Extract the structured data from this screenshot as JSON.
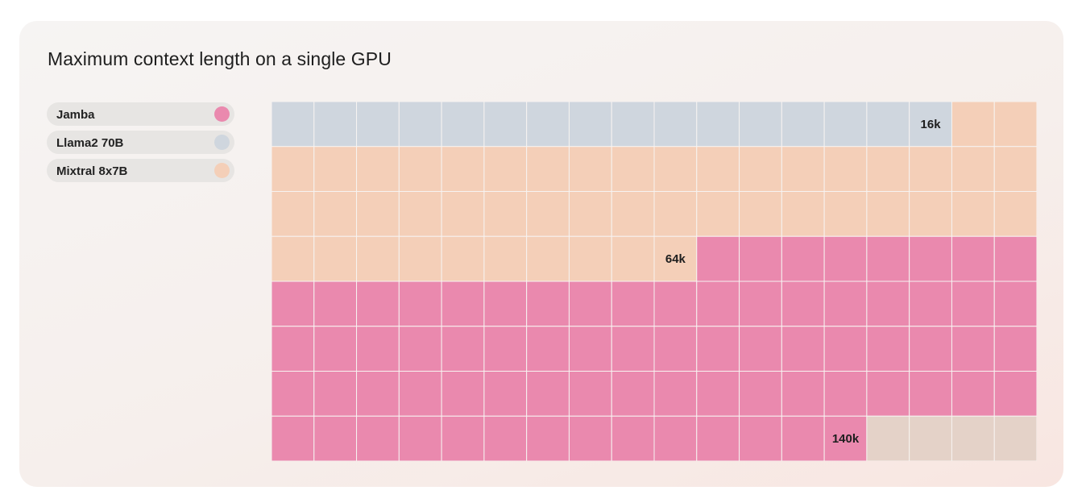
{
  "title": "Maximum context length on a single GPU",
  "colors": {
    "Jamba": "#ea89ae",
    "Llama2 70B": "#cfd6de",
    "Mixtral 8x7B": "#f4cfb8",
    "empty": "#e4d2c8"
  },
  "legend": [
    {
      "label": "Jamba",
      "color": "#ea89ae"
    },
    {
      "label": "Llama2 70B",
      "color": "#cfd6de"
    },
    {
      "label": "Mixtral 8x7B",
      "color": "#f4cfb8"
    }
  ],
  "chart_data": {
    "type": "waffle",
    "title": "Maximum context length on a single GPU",
    "grid": {
      "rows": 8,
      "columns": 18
    },
    "series": [
      {
        "name": "Llama2 70B",
        "label": "16k",
        "cells": 16
      },
      {
        "name": "Mixtral 8x7B",
        "label": "64k",
        "cells": 48
      },
      {
        "name": "Jamba",
        "label": "140k",
        "cells": 76
      }
    ],
    "legend_position": "left"
  }
}
